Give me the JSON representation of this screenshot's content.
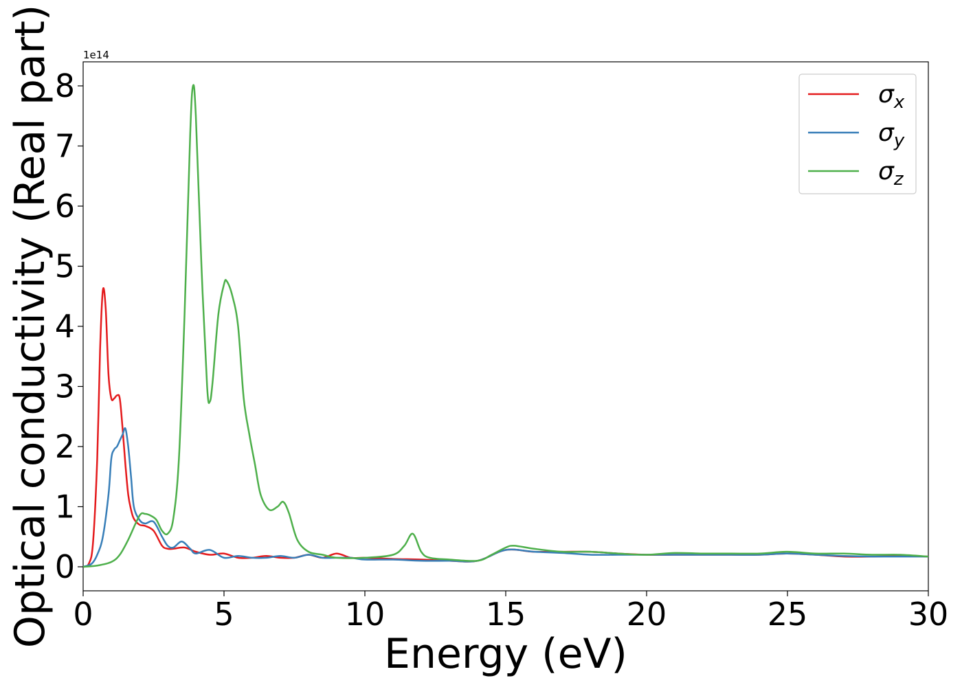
{
  "chart_data": {
    "type": "line",
    "xlabel": "Energy (eV)",
    "ylabel": "Optical conductivity (Real part)",
    "y_offset_label": "1e14",
    "xlim": [
      0,
      30
    ],
    "ylim": [
      -0.4,
      8.4
    ],
    "xticks": [
      0,
      5,
      10,
      15,
      20,
      25,
      30
    ],
    "yticks": [
      0,
      1,
      2,
      3,
      4,
      5,
      6,
      7,
      8
    ],
    "grid": false,
    "legend_position": "top-right",
    "series": [
      {
        "name": "σ",
        "subscript": "x",
        "color": "#e41a1c",
        "x": [
          0,
          0.2,
          0.35,
          0.5,
          0.6,
          0.7,
          0.8,
          0.9,
          1.0,
          1.1,
          1.2,
          1.3,
          1.4,
          1.5,
          1.6,
          1.7,
          1.8,
          2.0,
          2.2,
          2.5,
          2.8,
          3.0,
          3.2,
          3.6,
          4.0,
          4.5,
          5.0,
          5.5,
          6.0,
          6.5,
          7.0,
          7.5,
          8.0,
          8.5,
          9.0,
          9.5,
          10.0,
          11.0,
          12.0,
          13.0,
          14.0,
          15.0,
          16.0,
          17.0,
          18.0,
          19.0,
          20.0,
          21.0,
          22.0,
          23.0,
          24.0,
          25.0,
          26.0,
          27.0,
          28.0,
          29.0,
          30.0
        ],
        "values": [
          0,
          0.05,
          0.4,
          1.8,
          3.6,
          4.6,
          4.3,
          3.2,
          2.8,
          2.8,
          2.85,
          2.8,
          2.3,
          1.7,
          1.2,
          0.95,
          0.8,
          0.7,
          0.68,
          0.6,
          0.35,
          0.3,
          0.3,
          0.32,
          0.25,
          0.2,
          0.22,
          0.15,
          0.15,
          0.18,
          0.15,
          0.15,
          0.2,
          0.15,
          0.22,
          0.15,
          0.15,
          0.13,
          0.12,
          0.1,
          0.1,
          0.28,
          0.25,
          0.25,
          0.25,
          0.22,
          0.2,
          0.2,
          0.2,
          0.2,
          0.2,
          0.22,
          0.2,
          0.17,
          0.17,
          0.18,
          0.17
        ]
      },
      {
        "name": "σ",
        "subscript": "y",
        "color": "#377eb8",
        "x": [
          0,
          0.3,
          0.5,
          0.7,
          0.9,
          1.0,
          1.1,
          1.2,
          1.3,
          1.4,
          1.5,
          1.6,
          1.7,
          1.8,
          2.0,
          2.2,
          2.5,
          2.8,
          3.0,
          3.2,
          3.5,
          3.8,
          4.0,
          4.5,
          5.0,
          5.5,
          6.0,
          6.5,
          7.0,
          7.5,
          8.0,
          8.5,
          9.0,
          9.5,
          10.0,
          11.0,
          12.0,
          13.0,
          14.0,
          15.0,
          16.0,
          17.0,
          18.0,
          19.0,
          20.0,
          21.0,
          22.0,
          23.0,
          24.0,
          25.0,
          26.0,
          27.0,
          28.0,
          29.0,
          30.0
        ],
        "values": [
          0,
          0.05,
          0.2,
          0.5,
          1.2,
          1.8,
          1.95,
          2.0,
          2.1,
          2.2,
          2.3,
          2.0,
          1.5,
          1.0,
          0.78,
          0.72,
          0.75,
          0.5,
          0.35,
          0.32,
          0.42,
          0.3,
          0.22,
          0.28,
          0.15,
          0.18,
          0.15,
          0.15,
          0.18,
          0.15,
          0.2,
          0.15,
          0.15,
          0.15,
          0.12,
          0.12,
          0.1,
          0.1,
          0.1,
          0.28,
          0.25,
          0.23,
          0.2,
          0.2,
          0.2,
          0.2,
          0.2,
          0.2,
          0.2,
          0.22,
          0.2,
          0.18,
          0.17,
          0.17,
          0.17
        ]
      },
      {
        "name": "σ",
        "subscript": "z",
        "color": "#4daf4a",
        "x": [
          0,
          0.5,
          1.0,
          1.3,
          1.6,
          2.0,
          2.2,
          2.4,
          2.6,
          2.8,
          3.0,
          3.2,
          3.4,
          3.6,
          3.8,
          3.9,
          4.0,
          4.2,
          4.4,
          4.5,
          4.6,
          4.8,
          5.0,
          5.1,
          5.3,
          5.5,
          5.7,
          5.9,
          6.1,
          6.3,
          6.6,
          6.9,
          7.1,
          7.3,
          7.6,
          8.0,
          8.5,
          9.0,
          10.0,
          11.0,
          11.4,
          11.7,
          12.0,
          12.3,
          13.0,
          14.0,
          14.5,
          15.0,
          15.3,
          16.0,
          17.0,
          18.0,
          19.0,
          20.0,
          21.0,
          22.0,
          23.0,
          24.0,
          25.0,
          26.0,
          27.0,
          28.0,
          29.0,
          30.0
        ],
        "values": [
          0,
          0.02,
          0.08,
          0.2,
          0.45,
          0.85,
          0.88,
          0.85,
          0.78,
          0.6,
          0.55,
          0.8,
          1.8,
          4.2,
          7.2,
          8.0,
          7.5,
          5.0,
          3.0,
          2.75,
          3.1,
          4.2,
          4.7,
          4.75,
          4.5,
          4.0,
          2.8,
          2.2,
          1.7,
          1.2,
          0.95,
          1.0,
          1.08,
          0.9,
          0.45,
          0.25,
          0.2,
          0.15,
          0.15,
          0.2,
          0.35,
          0.55,
          0.25,
          0.15,
          0.12,
          0.1,
          0.2,
          0.32,
          0.35,
          0.3,
          0.25,
          0.25,
          0.22,
          0.2,
          0.23,
          0.22,
          0.22,
          0.22,
          0.25,
          0.22,
          0.22,
          0.2,
          0.2,
          0.17
        ]
      }
    ]
  }
}
